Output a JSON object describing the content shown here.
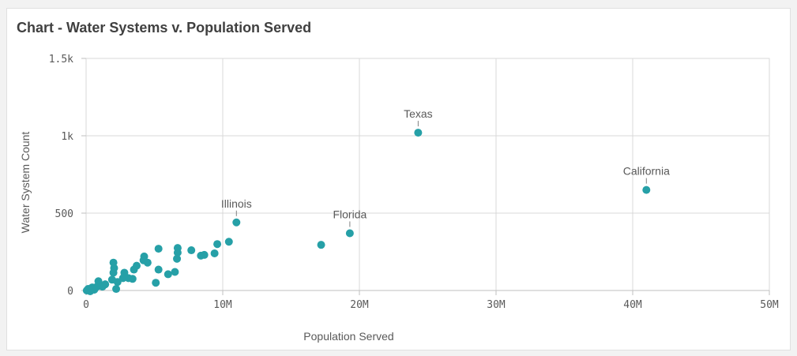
{
  "card": {
    "title": "Chart - Water Systems v. Population Served"
  },
  "colors": {
    "point": "#26a0a7",
    "grid": "#d9d9d9",
    "axis": "#bfbfbf",
    "text": "#595959"
  },
  "chart_data": {
    "type": "scatter",
    "title": "Chart - Water Systems v. Population Served",
    "xlabel": "Population Served",
    "ylabel": "Water System Count",
    "xlim": [
      0,
      50000000
    ],
    "ylim": [
      0,
      1500
    ],
    "x_ticks": [
      {
        "value": 0,
        "label": "0"
      },
      {
        "value": 10000000,
        "label": "10M"
      },
      {
        "value": 20000000,
        "label": "20M"
      },
      {
        "value": 30000000,
        "label": "30M"
      },
      {
        "value": 40000000,
        "label": "40M"
      },
      {
        "value": 50000000,
        "label": "50M"
      }
    ],
    "y_ticks": [
      {
        "value": 0,
        "label": "0"
      },
      {
        "value": 500,
        "label": "500"
      },
      {
        "value": 1000,
        "label": "1k"
      },
      {
        "value": 1500,
        "label": "1.5k"
      }
    ],
    "grid": true,
    "labeled_points": [
      {
        "label": "Texas",
        "x": 24300000,
        "y": 1020
      },
      {
        "label": "California",
        "x": 41000000,
        "y": 650
      },
      {
        "label": "Illinois",
        "x": 11000000,
        "y": 440
      },
      {
        "label": "Florida",
        "x": 19300000,
        "y": 370
      }
    ],
    "points": [
      {
        "x": 17200000,
        "y": 295
      },
      {
        "x": 10450000,
        "y": 315
      },
      {
        "x": 9600000,
        "y": 300
      },
      {
        "x": 9400000,
        "y": 240
      },
      {
        "x": 8650000,
        "y": 230
      },
      {
        "x": 8400000,
        "y": 225
      },
      {
        "x": 7700000,
        "y": 260
      },
      {
        "x": 6700000,
        "y": 275
      },
      {
        "x": 6700000,
        "y": 245
      },
      {
        "x": 6650000,
        "y": 205
      },
      {
        "x": 6500000,
        "y": 120
      },
      {
        "x": 6000000,
        "y": 105
      },
      {
        "x": 5300000,
        "y": 270
      },
      {
        "x": 5300000,
        "y": 135
      },
      {
        "x": 5100000,
        "y": 50
      },
      {
        "x": 4500000,
        "y": 180
      },
      {
        "x": 4250000,
        "y": 220
      },
      {
        "x": 4200000,
        "y": 195
      },
      {
        "x": 3700000,
        "y": 160
      },
      {
        "x": 3500000,
        "y": 135
      },
      {
        "x": 3400000,
        "y": 75
      },
      {
        "x": 3100000,
        "y": 80
      },
      {
        "x": 2800000,
        "y": 115
      },
      {
        "x": 2700000,
        "y": 80
      },
      {
        "x": 2300000,
        "y": 55
      },
      {
        "x": 2200000,
        "y": 10
      },
      {
        "x": 2050000,
        "y": 145
      },
      {
        "x": 2000000,
        "y": 180
      },
      {
        "x": 2000000,
        "y": 115
      },
      {
        "x": 1900000,
        "y": 70
      },
      {
        "x": 1400000,
        "y": 40
      },
      {
        "x": 1200000,
        "y": 25
      },
      {
        "x": 900000,
        "y": 60
      },
      {
        "x": 800000,
        "y": 25
      },
      {
        "x": 600000,
        "y": 5
      },
      {
        "x": 450000,
        "y": 20
      },
      {
        "x": 300000,
        "y": -5
      },
      {
        "x": 150000,
        "y": 10
      },
      {
        "x": 50000,
        "y": 0
      }
    ]
  }
}
